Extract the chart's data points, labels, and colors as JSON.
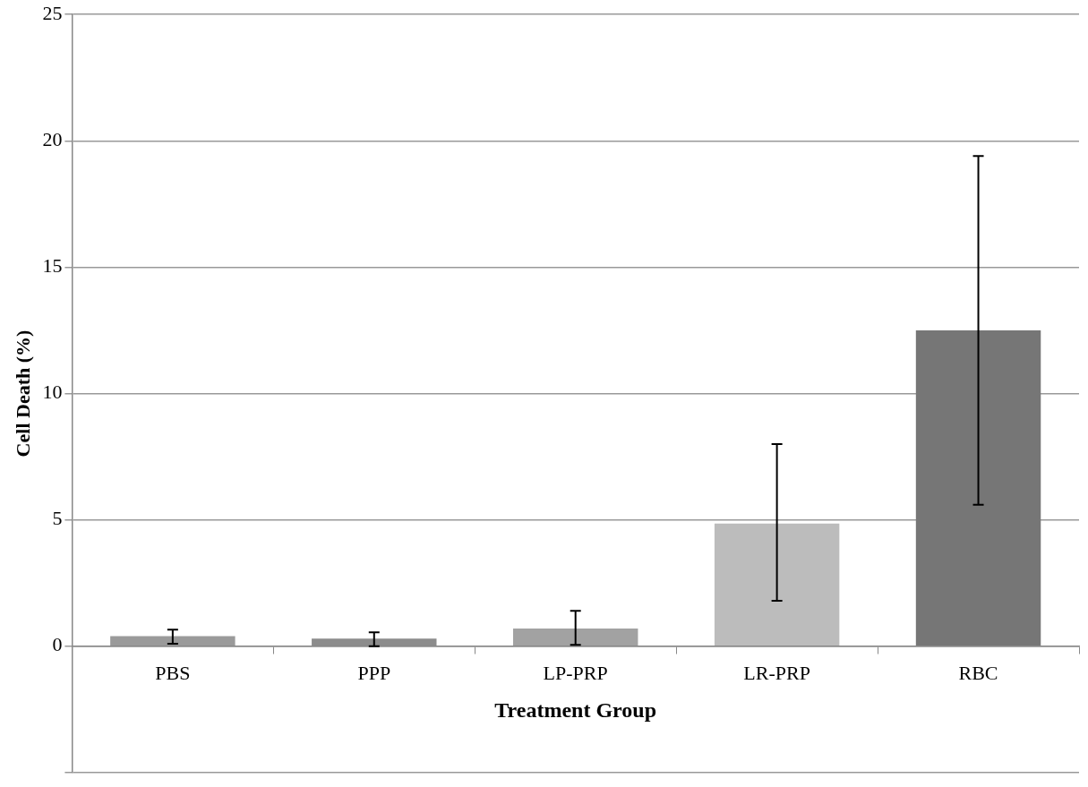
{
  "chart_data": {
    "type": "bar",
    "xlabel": "Treatment Group",
    "ylabel": "Cell Death (%)",
    "categories": [
      "PBS",
      "PPP",
      "LP-PRP",
      "LR-PRP",
      "RBC"
    ],
    "values": [
      0.4,
      0.3,
      0.7,
      4.85,
      12.5
    ],
    "colors": [
      "#9a9a9a",
      "#8c8c8c",
      "#a2a2a2",
      "#bcbcbc",
      "#767676"
    ],
    "errors": [
      [
        0.1,
        0.65
      ],
      [
        0,
        0.55
      ],
      [
        0.05,
        1.4
      ],
      [
        1.8,
        8.0
      ],
      [
        5.6,
        19.4
      ]
    ],
    "ylim": [
      -5,
      25
    ],
    "yticks": [
      {
        "value": -5,
        "label": null
      },
      0,
      5,
      10,
      15,
      20,
      25
    ],
    "grid": "y",
    "legend": false
  }
}
